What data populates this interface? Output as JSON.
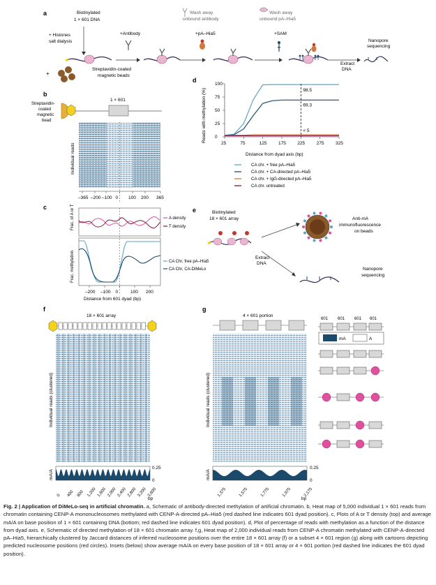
{
  "colors": {
    "navy": "#1b4a6b",
    "lightblue": "#5ba5c4",
    "pink": "#e0509f",
    "darkred": "#7a1940",
    "orange": "#d3783a",
    "yellow": "#f3d219",
    "lightpink": "#e8b7cf",
    "gray": "#d0d0d0",
    "heat": "#2d5f80"
  },
  "panel_a": {
    "label": "a",
    "biotinylated": "Biotinylated",
    "dna": "1 × 601 DNA",
    "histones": "+ Histones",
    "salt": "salt dialysis",
    "antibody": "+Antibody",
    "wash1_line1": "Wash away",
    "wash1_line2": "unbound antibody",
    "pa": "+pA–Hia5",
    "wash2_line1": "Wash away",
    "wash2_line2": "unbound pA–Hia5",
    "sam": "+SAM",
    "nanopore1": "Nanopore",
    "nanopore2": "sequencing",
    "beads1": "Streptavidin-coated",
    "beads2": "magnetic beads",
    "plus": "+",
    "extract1": "Extract",
    "extract2": "DNA"
  },
  "panel_b": {
    "label": "b",
    "bead1": "Streptavidin-",
    "bead2": "coated",
    "bead3": "magnetic",
    "bead4": "bead",
    "construct": "1 × 601",
    "ylabel": "Individual reads",
    "ticks": [
      "–365",
      "–200",
      "–100",
      "0",
      "100",
      "200",
      "365"
    ]
  },
  "panel_c": {
    "label": "c",
    "ylabel_top": "Frac. of A or T",
    "ylabel_bottom": "Frac. methylation",
    "legend_top": [
      "A density",
      "T density"
    ],
    "legend_bottom": [
      "CA Chr, free pA–Hia5",
      "CA Chr, CA-DiMeLo"
    ],
    "ticks": [
      "–200",
      "–100",
      "0",
      "100",
      "200"
    ],
    "xlabel": "Distance from 601 dyad (bp)"
  },
  "chart_data": {
    "type": "line",
    "title": "",
    "xlabel": "Distance from dyad axis (bp)",
    "ylabel": "Reads with methylation (%)",
    "xlim": [
      25,
      325
    ],
    "ylim": [
      0,
      100
    ],
    "xticks": [
      "25",
      "75",
      "125",
      "175",
      "225",
      "275",
      "325"
    ],
    "yticks": [
      "0",
      "25",
      "50",
      "75",
      "100"
    ],
    "x": [
      25,
      50,
      75,
      100,
      125,
      150,
      175,
      200,
      225,
      250,
      275,
      300,
      325
    ],
    "series": [
      {
        "name": "CA chr. + free pA–Hia5",
        "values": [
          3,
          5,
          25,
          70,
          98,
          98.5,
          98.5,
          98.5,
          98.5,
          98.5,
          98.5,
          98.5,
          98.5
        ]
      },
      {
        "name": "CA chr. + CA-directed pA–Hia5",
        "values": [
          3,
          4,
          15,
          40,
          63,
          68,
          69.3,
          69.3,
          69.3,
          69.3,
          69.3,
          69.3,
          69.3
        ]
      },
      {
        "name": "CA chr. + IgG-directed pA–Hia5",
        "values": [
          3,
          3,
          3,
          4,
          4,
          4,
          4,
          4,
          4,
          4,
          4,
          4,
          4
        ]
      },
      {
        "name": "CA chr. untreated",
        "values": [
          2,
          2,
          2,
          2,
          2,
          2,
          2,
          2,
          2,
          2,
          2,
          2,
          2
        ]
      }
    ],
    "annotations": [
      "98.5",
      "69.3",
      "< 5"
    ],
    "dashed_line_x": 225
  },
  "panel_d": {
    "label": "d"
  },
  "panel_e": {
    "label": "e",
    "biotinylated": "Biotinylated",
    "array": "18 × 601 array",
    "immuno1": "Anti-m",
    "immuno1b": "A",
    "immuno2": "immunofluorescence",
    "immuno3": "on beads",
    "extract1": "Extract",
    "extract2": "DNA",
    "nanopore1": "Nanopore",
    "nanopore2": "sequencing"
  },
  "panel_f": {
    "label": "f",
    "title": "18 × 601 array",
    "ylabel": "Individual reads (clustered)",
    "mavalue": "0.25",
    "mazero": "0",
    "maylabel": "mA/A",
    "ticks": [
      "0",
      "400",
      "800",
      "1,200",
      "1,600",
      "2,000",
      "2,400",
      "2,800",
      "3,200",
      "3,600"
    ],
    "unit": "bp"
  },
  "panel_g": {
    "label": "g",
    "title": "4 × 601 portion",
    "ylabel": "Individual reads (clustered)",
    "mavalue": "0.25",
    "mazero": "0",
    "maylabel": "mA/A",
    "ticks": [
      "1,375",
      "1,575",
      "1,775",
      "1,975",
      "2,175"
    ],
    "unit": "bp",
    "legend_labels": [
      "601",
      "601",
      "601",
      "601"
    ],
    "key_ma": "mA",
    "key_a": "A"
  },
  "caption": {
    "fig": "Fig. 2 | Application of DiMeLo-seq in artificial chromatin.",
    "text": " a, Schematic of antibody-directed methylation of artificial chromatin. b, Heat map of 5,000 individual 1 × 601 reads from chromatin containing CENP-A mononucleosomes methylated with CENP-A-directed pA–Hia5 (red dashed line indicates 601 dyad position). c, Plots of A or T density (top) and average mA/A on base position of 1 × 601 containing DNA (bottom; red dashed line indicates 601 dyad position). d, Plot of percentage of reads with methylation as a function of the distance from dyad axis. e, Schematic of directed methylation of 18 × 601 chromatin array. f,g, Heat map of 2,000 individual reads from CENP-A chromatin methylated with CENP-A-directed pA–Hia5, hierarchically clustered by Jaccard distances of inferred nucleosome positions over the entire 18 × 601 array (f) or a subset 4 × 601 region (g) along with cartoons depicting predicted nucleosome positions (red circles). Insets (below) show average mA/A on every base position of 18 × 601 array or 4 × 601 portion (red dashed line indicates the 601 dyad position)."
  }
}
